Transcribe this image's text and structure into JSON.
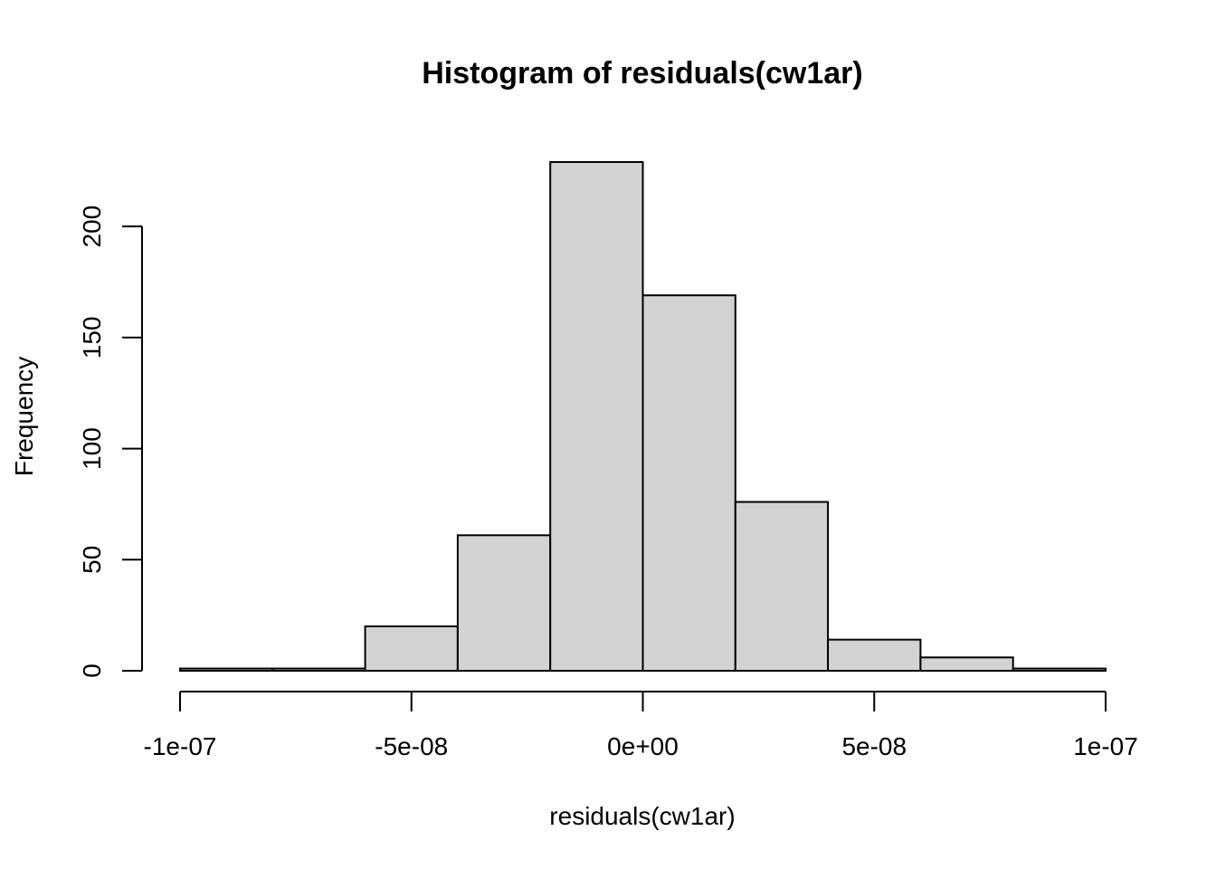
{
  "chart_data": {
    "type": "bar",
    "title": "Histogram of residuals(cw1ar)",
    "xlabel": "residuals(cw1ar)",
    "ylabel": "Frequency",
    "bin_edges": [
      -1e-07,
      -8e-08,
      -6e-08,
      -4e-08,
      -2e-08,
      0,
      2e-08,
      4e-08,
      6e-08,
      8e-08,
      1e-07
    ],
    "values": [
      1,
      1,
      20,
      61,
      229,
      169,
      76,
      14,
      6,
      1
    ],
    "xlim": [
      -1e-07,
      1e-07
    ],
    "ylim": [
      0,
      229
    ],
    "x_ticks": [
      {
        "value": -1e-07,
        "label": "-1e-07"
      },
      {
        "value": -5e-08,
        "label": "-5e-08"
      },
      {
        "value": 0,
        "label": "0e+00"
      },
      {
        "value": 5e-08,
        "label": "5e-08"
      },
      {
        "value": 1e-07,
        "label": "1e-07"
      }
    ],
    "y_ticks": [
      {
        "value": 0,
        "label": "0"
      },
      {
        "value": 50,
        "label": "50"
      },
      {
        "value": 100,
        "label": "100"
      },
      {
        "value": 150,
        "label": "150"
      },
      {
        "value": 200,
        "label": "200"
      }
    ],
    "bar_fill": "#d3d3d3",
    "bar_stroke": "#000000",
    "grid": false,
    "legend": "none"
  }
}
